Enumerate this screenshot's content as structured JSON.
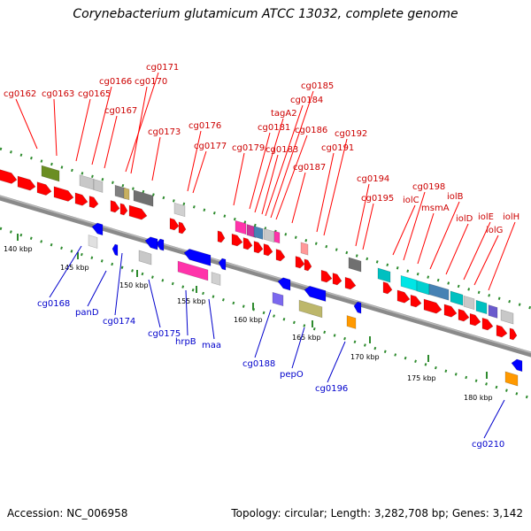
{
  "title": "Corynebacterium glutamicum ATCC 13032, complete genome",
  "footer": {
    "accession": "Accession: NC_006958",
    "summary": "Topology: circular; Length: 3,282,708 bp; Genes: 3,142"
  },
  "colors": {
    "forward_label": "#cc0000",
    "reverse_label": "#0000cc",
    "axis": "#808080",
    "dots": "#2e8b2e"
  },
  "axis_ticks": [
    {
      "label": "140 kbp"
    },
    {
      "label": "145 kbp"
    },
    {
      "label": "150 kbp"
    },
    {
      "label": "155 kbp"
    },
    {
      "label": "160 kbp"
    },
    {
      "label": "165 kbp"
    },
    {
      "label": "170 kbp"
    },
    {
      "label": "175 kbp"
    },
    {
      "label": "180 kbp"
    }
  ],
  "forward_genes": [
    {
      "name": "cg0162"
    },
    {
      "name": "cg0163"
    },
    {
      "name": "cg0165"
    },
    {
      "name": "cg0166"
    },
    {
      "name": "cg0167"
    },
    {
      "name": "cg0171"
    },
    {
      "name": "cg0170"
    },
    {
      "name": "cg0173"
    },
    {
      "name": "cg0176"
    },
    {
      "name": "cg0177"
    },
    {
      "name": "cg0179"
    },
    {
      "name": "cg0181"
    },
    {
      "name": "tagA2"
    },
    {
      "name": "cg0183"
    },
    {
      "name": "cg0184"
    },
    {
      "name": "cg0185"
    },
    {
      "name": "cg0186"
    },
    {
      "name": "cg0187"
    },
    {
      "name": "cg0191"
    },
    {
      "name": "cg0192"
    },
    {
      "name": "cg0194"
    },
    {
      "name": "cg0195"
    },
    {
      "name": "iolC"
    },
    {
      "name": "cg0198"
    },
    {
      "name": "msmA"
    },
    {
      "name": "iolB"
    },
    {
      "name": "iolD"
    },
    {
      "name": "iolE"
    },
    {
      "name": "iolG"
    },
    {
      "name": "iolH"
    }
  ],
  "reverse_genes": [
    {
      "name": "cg0168"
    },
    {
      "name": "panD"
    },
    {
      "name": "cg0174"
    },
    {
      "name": "cg0175"
    },
    {
      "name": "hrpB"
    },
    {
      "name": "maa"
    },
    {
      "name": "cg0188"
    },
    {
      "name": "pepO"
    },
    {
      "name": "cg0196"
    },
    {
      "name": "cg0210"
    }
  ]
}
